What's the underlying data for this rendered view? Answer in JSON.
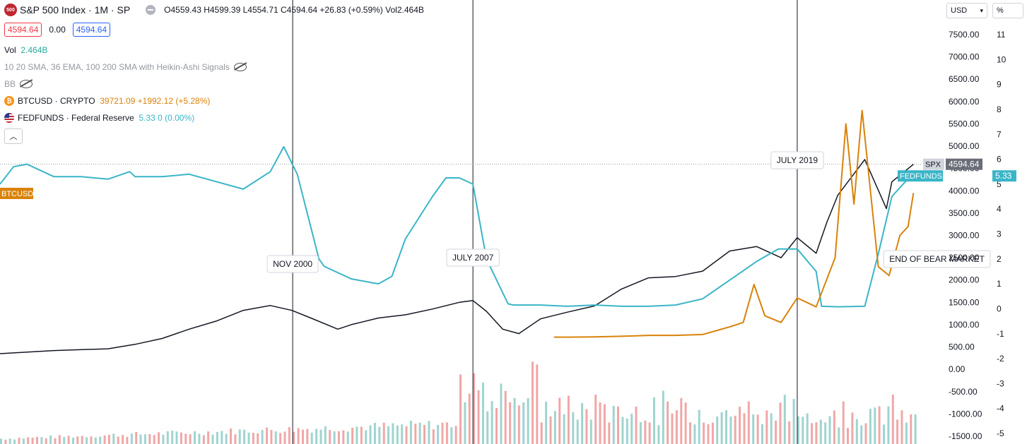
{
  "header": {
    "logo_text": "500",
    "title": "S&P 500 Index · 1M · SP",
    "ohlc": {
      "o": "O4559.43",
      "h": "H4599.39",
      "l": "L4554.71",
      "c": "C4594.64",
      "chg": "+26.83 (+0.59%)",
      "vol": "Vol2.464B"
    },
    "bid": "4594.64",
    "spread": "0.00",
    "ask": "4594.64"
  },
  "indicators": {
    "vol_label": "Vol",
    "vol_value": "2.464B",
    "ma_label": "10 20 SMA, 36 EMA, 100 200 SMA with Heikin-Ashi Signals",
    "bb_label": "BB",
    "btc_label": "BTCUSD · CRYPTO",
    "btc_value": "39721.09",
    "btc_change": "+1992.12 (+5.28%)",
    "fed_label": "FEDFUNDS · Federal Reserve",
    "fed_value": "5.33",
    "fed_change": "0 (0.00%)",
    "collapse_icon": "chevron-up-icon"
  },
  "controls": {
    "currency": "USD",
    "scale_unit": "%"
  },
  "colors": {
    "spx": "#131722",
    "fed": "#3ab5c8",
    "btc": "#d9820a",
    "vol_up": "#9fd4cf",
    "vol_down": "#f0a7a7",
    "accent_red": "#f23645",
    "accent_blue": "#2962ff"
  },
  "chart_data": {
    "type": "line",
    "x_range": [
      1990,
      2024
    ],
    "left_axis": {
      "ticks": [
        "7500.00",
        "7000.00",
        "6500.00",
        "6000.00",
        "5500.00",
        "5000.00",
        "4500.00",
        "4000.00",
        "3500.00",
        "3000.00",
        "2500.00",
        "2000.00",
        "1500.00",
        "1000.00",
        "500.00",
        "0.00",
        "-500.00",
        "-1000.00",
        "-1500.00"
      ],
      "range": [
        -1500,
        7500
      ]
    },
    "right_axis": {
      "ticks": [
        "11",
        "10",
        "9",
        "8",
        "7",
        "6",
        "5",
        "4",
        "3",
        "2",
        "1",
        "0",
        "-1",
        "-2",
        "-3",
        "-4",
        "-5"
      ],
      "range": [
        -5,
        11
      ]
    },
    "series": [
      {
        "name": "SPX",
        "axis": "left",
        "x": [
          1990,
          1992,
          1994,
          1995,
          1996,
          1997,
          1998,
          1999,
          2000,
          2000.8,
          2001.5,
          2002.5,
          2003,
          2004,
          2005,
          2006,
          2007,
          2007.5,
          2008,
          2008.6,
          2009.2,
          2010,
          2011,
          2012,
          2013,
          2014,
          2015,
          2016,
          2017,
          2018,
          2018.9,
          2019.5,
          2020.2,
          2020.6,
          2021,
          2022,
          2022.8,
          2023,
          2023.8
        ],
        "y": [
          350,
          420,
          460,
          560,
          690,
          900,
          1080,
          1320,
          1430,
          1320,
          1150,
          900,
          1000,
          1150,
          1220,
          1350,
          1500,
          1540,
          1300,
          900,
          800,
          1130,
          1280,
          1420,
          1800,
          2050,
          2080,
          2200,
          2650,
          2750,
          2500,
          2950,
          2600,
          3300,
          3900,
          4700,
          3600,
          4200,
          4594.64
        ]
      },
      {
        "name": "FEDFUNDS",
        "axis": "right",
        "x": [
          1990,
          1990.5,
          1991,
          1991.8,
          1992,
          1993,
          1994,
          1994.8,
          1995,
          1996,
          1997,
          1998,
          1999,
          2000,
          2000.5,
          2001,
          2001.8,
          2002,
          2003,
          2004,
          2004.5,
          2005,
          2006,
          2006.5,
          2007,
          2007.5,
          2008,
          2008.8,
          2009,
          2010,
          2011,
          2012,
          2013,
          2014,
          2015,
          2016,
          2017,
          2018,
          2018.8,
          2019.5,
          2020.2,
          2020.4,
          2021,
          2022,
          2022.5,
          2023,
          2023.5,
          2023.8
        ],
        "y": [
          5.0,
          5.7,
          5.8,
          5.4,
          5.3,
          5.3,
          5.2,
          5.5,
          5.3,
          5.3,
          5.4,
          5.1,
          4.8,
          5.5,
          6.5,
          5.4,
          2.0,
          1.7,
          1.2,
          1.0,
          1.3,
          2.8,
          4.5,
          5.25,
          5.25,
          5.0,
          2.0,
          0.2,
          0.15,
          0.15,
          0.1,
          0.15,
          0.1,
          0.1,
          0.15,
          0.4,
          1.15,
          1.9,
          2.4,
          2.4,
          1.5,
          0.1,
          0.08,
          0.1,
          2.2,
          4.5,
          5.1,
          5.33
        ]
      },
      {
        "name": "BTCUSD",
        "axis": "left",
        "x": [
          2010.5,
          2011,
          2012,
          2013,
          2014,
          2015,
          2016,
          2017,
          2017.5,
          2017.9,
          2018.3,
          2018.9,
          2019.5,
          2020.2,
          2020.9,
          2021.3,
          2021.6,
          2021.9,
          2022.5,
          2022.9,
          2023.3,
          2023.6,
          2023.8
        ],
        "y": [
          720,
          720,
          725,
          740,
          760,
          760,
          780,
          950,
          1050,
          1900,
          1200,
          1050,
          1600,
          1400,
          2500,
          5500,
          3700,
          5800,
          2300,
          2100,
          3000,
          3200,
          3950
        ]
      }
    ],
    "annotations": [
      {
        "text": "NOV 2000",
        "x": 2000.83
      },
      {
        "text": "JULY 2007",
        "x": 2007.5
      },
      {
        "text": "JULY 2019",
        "x": 2019.5
      },
      {
        "text": "END OF BEAR MARKET",
        "x": 2023.1
      }
    ],
    "price_labels": [
      {
        "text": "SPX",
        "value": "4594.64"
      },
      {
        "text": "FEDFUNDS",
        "value": "5.33"
      },
      {
        "text": "BTCUSD"
      }
    ],
    "volume": {
      "note": "volume histogram bars at bottom, red/green by candle direction"
    },
    "grid": false
  }
}
